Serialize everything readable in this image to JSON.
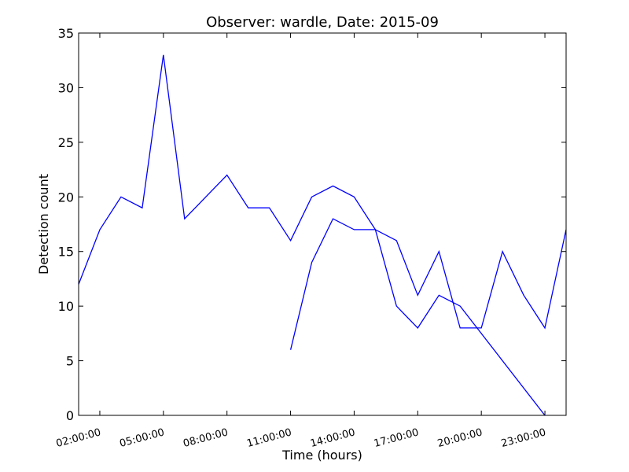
{
  "chart_data": {
    "type": "line",
    "title": "Observer: wardle, Date: 2015-09",
    "xlabel": "Time (hours)",
    "ylabel": "Detection count",
    "xlim": [
      "01:00:00",
      "24:00:00"
    ],
    "ylim": [
      0,
      35
    ],
    "x_ticks": [
      "02:00:00",
      "05:00:00",
      "08:00:00",
      "11:00:00",
      "14:00:00",
      "17:00:00",
      "20:00:00",
      "23:00:00"
    ],
    "y_ticks": [
      0,
      5,
      10,
      15,
      20,
      25,
      30,
      35
    ],
    "grid": false,
    "color": "#0000ff",
    "series": [
      {
        "x": [
          "01:00:00",
          "02:00:00",
          "03:00:00",
          "04:00:00",
          "05:00:00",
          "06:00:00",
          "08:00:00",
          "09:00:00",
          "10:00:00",
          "11:00:00",
          "12:00:00",
          "13:00:00",
          "14:00:00",
          "15:00:00",
          "16:00:00",
          "17:00:00",
          "18:00:00",
          "19:00:00",
          "20:00:00",
          "21:00:00",
          "22:00:00",
          "23:00:00",
          "24:00:00"
        ],
        "values": [
          12,
          17,
          20,
          19,
          33,
          18,
          22,
          19,
          19,
          16,
          20,
          21,
          20,
          17,
          16,
          11,
          15,
          8,
          8,
          15,
          11,
          8,
          17
        ]
      },
      {
        "x": [
          "11:00:00",
          "12:00:00",
          "13:00:00",
          "14:00:00",
          "15:00:00",
          "16:00:00",
          "17:00:00",
          "18:00:00",
          "19:00:00",
          "23:00:00"
        ],
        "values": [
          6,
          14,
          18,
          17,
          17,
          10,
          8,
          11,
          10,
          0
        ]
      }
    ]
  }
}
